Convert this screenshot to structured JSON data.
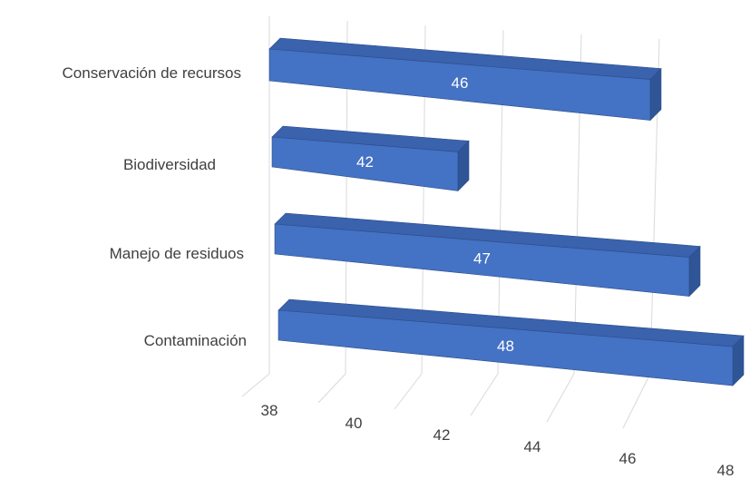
{
  "chart_data": {
    "type": "bar",
    "orientation": "horizontal",
    "style": "3d",
    "categories": [
      "Conservación de recursos",
      "Biodiversidad",
      "Manejo de residuos",
      "Contaminación"
    ],
    "values": [
      46,
      42,
      47,
      48
    ],
    "data_labels": [
      "46",
      "42",
      "47",
      "48"
    ],
    "xlim": [
      38,
      48
    ],
    "x_ticks": [
      "38",
      "40",
      "42",
      "44",
      "46",
      "48"
    ],
    "title": "",
    "xlabel": "",
    "ylabel": "",
    "grid": true,
    "legend": "none",
    "colors": {
      "bar_front": "#4472c4",
      "bar_top": "#3a62ad",
      "bar_side": "#2f5597",
      "bar_edge": "#2b4d8a",
      "grid": "#d9d9d9",
      "text": "#404040",
      "data_label": "#ffffff"
    }
  }
}
